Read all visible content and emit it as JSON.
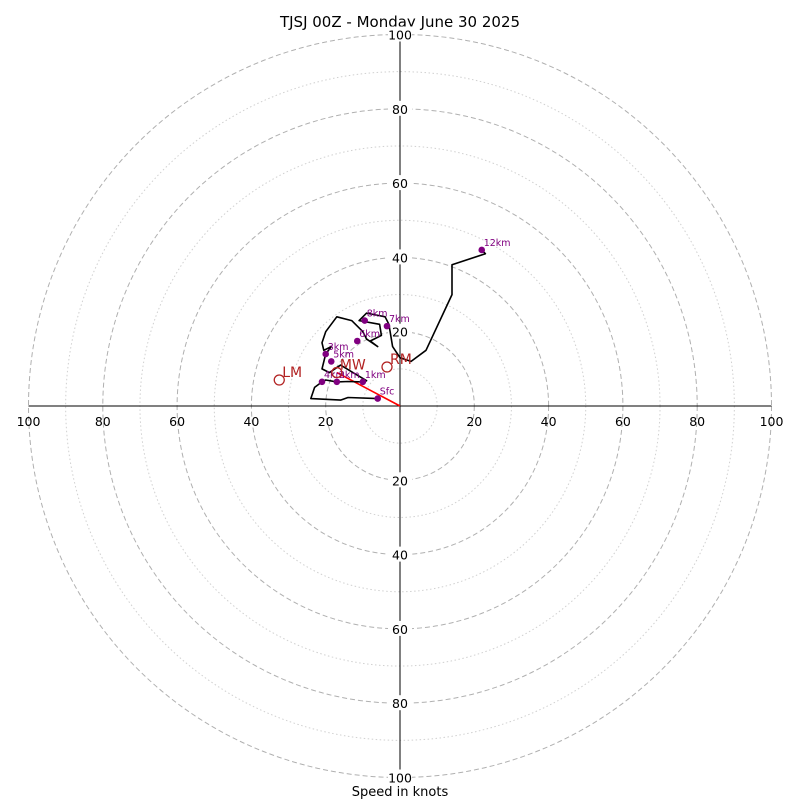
{
  "chart_data": {
    "type": "hodograph",
    "title": "TJSJ 00Z - Monday June 30 2025",
    "xlabel": "Speed in knots",
    "axis_range": [
      -100,
      100
    ],
    "major_rings": [
      20,
      40,
      60,
      80,
      100
    ],
    "minor_rings": [
      10,
      30,
      50,
      70,
      90
    ],
    "tick_labels": {
      "x_negative": [
        "100",
        "80",
        "60",
        "40",
        "20"
      ],
      "x_positive": [
        "20",
        "40",
        "60",
        "80",
        "100"
      ],
      "y_positive": [
        "20",
        "40",
        "60",
        "80",
        "100"
      ],
      "y_negative": [
        "20",
        "40",
        "60",
        "80",
        "100"
      ]
    },
    "trace": [
      {
        "u": -6,
        "v": 2
      },
      {
        "u": -14,
        "v": 2.3
      },
      {
        "u": -16,
        "v": 1.6
      },
      {
        "u": -24,
        "v": 2
      },
      {
        "u": -23,
        "v": 5
      },
      {
        "u": -21,
        "v": 6.5
      },
      {
        "u": -20,
        "v": 7
      },
      {
        "u": -17,
        "v": 6.5
      },
      {
        "u": -14,
        "v": 6.6
      },
      {
        "u": -10,
        "v": 6.5
      },
      {
        "u": -9,
        "v": 6.8
      },
      {
        "u": -13,
        "v": 9.2
      },
      {
        "u": -16,
        "v": 11
      },
      {
        "u": -19,
        "v": 9
      },
      {
        "u": -21,
        "v": 10
      },
      {
        "u": -20,
        "v": 14
      },
      {
        "u": -18.5,
        "v": 16
      },
      {
        "u": -20.5,
        "v": 15
      },
      {
        "u": -21,
        "v": 17
      },
      {
        "u": -20,
        "v": 20
      },
      {
        "u": -17,
        "v": 24
      },
      {
        "u": -13,
        "v": 23
      },
      {
        "u": -10,
        "v": 20
      },
      {
        "u": -9,
        "v": 18
      },
      {
        "u": -6,
        "v": 16
      },
      {
        "u": -8,
        "v": 17.5
      },
      {
        "u": -5,
        "v": 19
      },
      {
        "u": -5.5,
        "v": 22
      },
      {
        "u": -11,
        "v": 23
      },
      {
        "u": -9,
        "v": 25
      },
      {
        "u": -4,
        "v": 24
      },
      {
        "u": -3,
        "v": 22
      },
      {
        "u": -2,
        "v": 16
      },
      {
        "u": 0,
        "v": 13
      },
      {
        "u": 3,
        "v": 12
      },
      {
        "u": 7,
        "v": 15
      },
      {
        "u": 14,
        "v": 30
      },
      {
        "u": 14,
        "v": 38
      },
      {
        "u": 23,
        "v": 41
      },
      {
        "u": 22,
        "v": 42
      }
    ],
    "height_markers": [
      {
        "label": "Sfc",
        "u": -6,
        "v": 2
      },
      {
        "label": "1km",
        "u": -10,
        "v": 6.5
      },
      {
        "label": "2km",
        "u": -17,
        "v": 6.5
      },
      {
        "label": "3km",
        "u": -20,
        "v": 14
      },
      {
        "label": "4km",
        "u": -21,
        "v": 6.5
      },
      {
        "label": "5km",
        "u": -18.5,
        "v": 12
      },
      {
        "label": "6km",
        "u": -11.5,
        "v": 17.5
      },
      {
        "label": "7km",
        "u": -3.5,
        "v": 21.5
      },
      {
        "label": "8km",
        "u": -9.5,
        "v": 23
      },
      {
        "label": "12km",
        "u": 22,
        "v": 42
      }
    ],
    "motion_vectors": [
      {
        "label": "LM",
        "u": -32.5,
        "v": 7
      },
      {
        "label": "MW",
        "u": -17,
        "v": 9
      },
      {
        "label": "RM",
        "u": -3.5,
        "v": 10.5
      }
    ],
    "shear_vector": {
      "from": {
        "u": 0,
        "v": 0
      },
      "to": {
        "u": -17,
        "v": 9
      }
    },
    "colors": {
      "trace": "#000000",
      "height_marker": "#800080",
      "storm_motion": "#b22222",
      "shear_line": "#ff0000",
      "ring_major": "#b0b0b0",
      "ring_minor": "#d0d0d0",
      "axis": "#000000"
    }
  }
}
